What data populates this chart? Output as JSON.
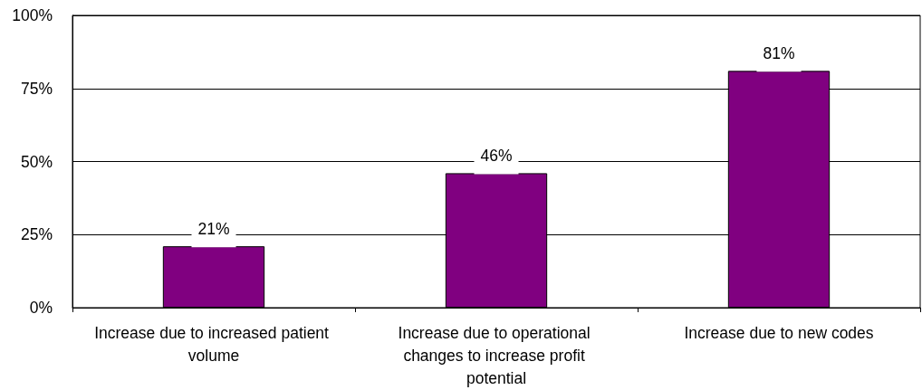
{
  "chart_data": {
    "type": "bar",
    "categories": [
      "Increase due to increased patient volume",
      "Increase due to operational changes to increase profit potential",
      "Increase due to new codes"
    ],
    "values": [
      21,
      46,
      81
    ],
    "color": "#800080",
    "value_labels": [
      "21%",
      "46%",
      "81%"
    ],
    "ylim": [
      0,
      100
    ],
    "yticks": [
      {
        "value": 0,
        "label": "0%"
      },
      {
        "value": 25,
        "label": "25%"
      },
      {
        "value": 50,
        "label": "50%"
      },
      {
        "value": 75,
        "label": "75%"
      },
      {
        "value": 100,
        "label": "100%"
      }
    ],
    "grid": "y"
  }
}
